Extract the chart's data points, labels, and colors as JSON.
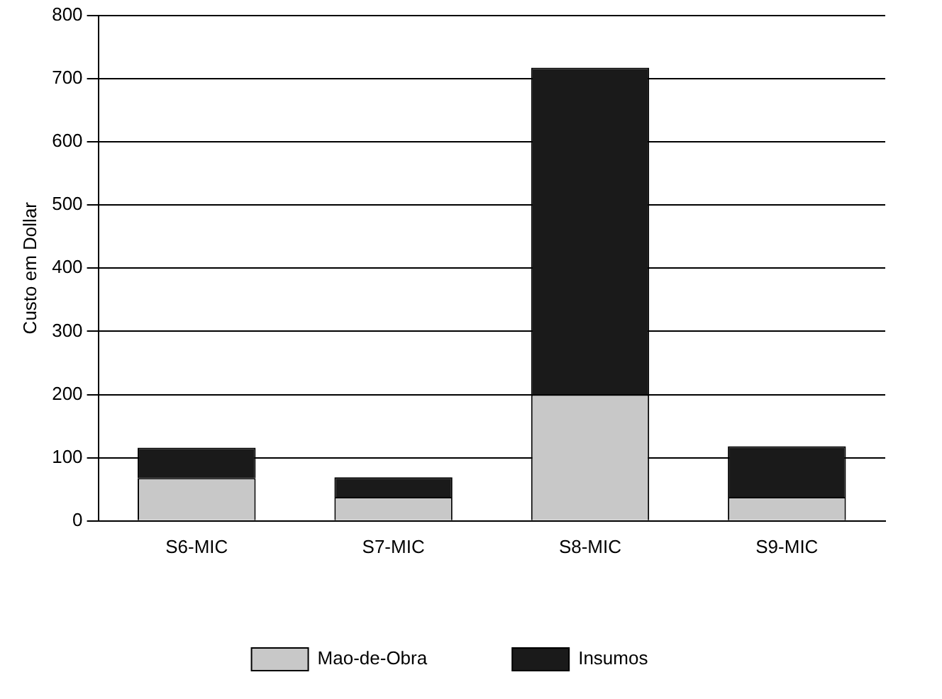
{
  "chart_data": {
    "type": "bar",
    "stacked": true,
    "ylabel": "Custo em Dollar",
    "categories": [
      "S6-MIC",
      "S7-MIC",
      "S8-MIC",
      "S9-MIC"
    ],
    "series": [
      {
        "name": "Mao-de-Obra",
        "color": "#c8c8c8",
        "values": [
          68,
          38,
          200,
          38
        ]
      },
      {
        "name": "Insumos",
        "color": "#1a1a1a",
        "values": [
          48,
          31,
          517,
          80
        ]
      }
    ],
    "ylim": [
      0,
      800
    ],
    "yticks": [
      0,
      100,
      200,
      300,
      400,
      500,
      600,
      700,
      800
    ],
    "grid": "y",
    "legend": "bottom"
  }
}
